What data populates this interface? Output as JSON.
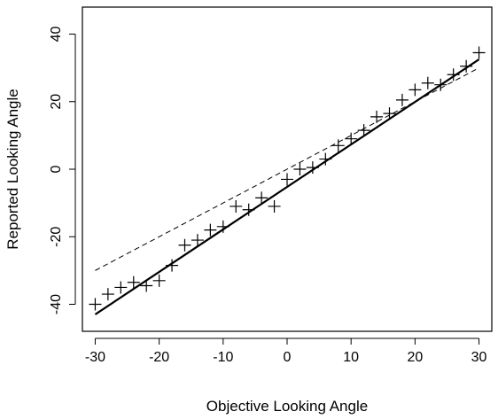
{
  "chart_data": {
    "type": "scatter",
    "title": "",
    "xlabel": "Objective Looking Angle",
    "ylabel": "Reported Looking Angle",
    "xlim": [
      -32,
      32
    ],
    "ylim": [
      -48,
      48
    ],
    "x_ticks": [
      -30,
      -20,
      -10,
      0,
      10,
      20,
      30
    ],
    "y_ticks": [
      -40,
      -20,
      0,
      20,
      40
    ],
    "grid": false,
    "legend": "none",
    "points": {
      "marker": "plus",
      "x": [
        -30,
        -28,
        -26,
        -24,
        -22,
        -20,
        -18,
        -16,
        -14,
        -12,
        -10,
        -8,
        -6,
        -4,
        -2,
        0,
        2,
        4,
        6,
        8,
        10,
        12,
        14,
        16,
        18,
        20,
        22,
        24,
        26,
        28,
        30
      ],
      "y": [
        -40,
        -37,
        -35,
        -33.5,
        -34.5,
        -33,
        -28.5,
        -22.5,
        -21,
        -18,
        -17,
        -11,
        -12,
        -8.5,
        -11,
        -3,
        0,
        0.5,
        3,
        7,
        9,
        11.5,
        15.5,
        16.5,
        20.5,
        23.5,
        25.5,
        25,
        28,
        30.5,
        34.5
      ]
    },
    "lines": [
      {
        "style": "solid",
        "x": [
          -30,
          30
        ],
        "y": [
          -43,
          32.5
        ]
      },
      {
        "style": "dashed",
        "x": [
          -30,
          30
        ],
        "y": [
          -30,
          30
        ]
      }
    ]
  }
}
